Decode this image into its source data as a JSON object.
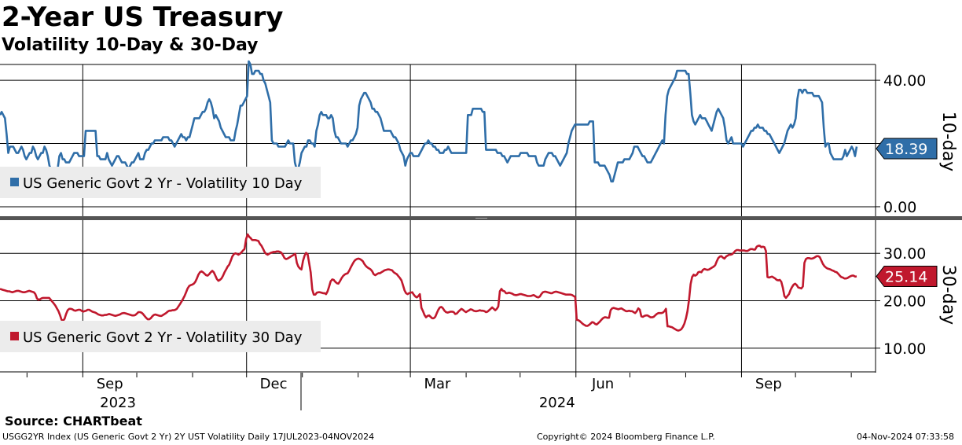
{
  "header": {
    "title": "2-Year US Treasury",
    "subtitle": "Volatility 10-Day & 30-Day"
  },
  "footer": {
    "source": "Source: CHARTbeat",
    "meta": "USGG2YR Index (US Generic Govt 2 Yr) 2Y UST Volatility  Daily 17JUL2023-04NOV2024",
    "copyright": "Copyright© 2024 Bloomberg Finance L.P.",
    "timestamp": "04-Nov-2024 07:33:58"
  },
  "chart_data": {
    "type": "line",
    "x_range": [
      "2023-07-17",
      "2024-11-04"
    ],
    "x_axis": {
      "month_ticks": [
        "Sep",
        "Dec",
        "Mar",
        "Jun",
        "Sep"
      ],
      "year_labels": [
        "2023",
        "2024"
      ]
    },
    "colors": {
      "vol10": "#2f6ea8",
      "vol30": "#c0182d"
    },
    "panels": [
      {
        "name": "10-day",
        "ylim": [
          -3,
          45
        ],
        "ticks": [
          "40.00",
          "20.00",
          "0.00"
        ],
        "tick_values": [
          40,
          20,
          0
        ],
        "series": {
          "name": "US Generic Govt 2 Yr - Volatility 10 Day",
          "last_value": "18.39",
          "values": [
            29,
            30,
            29,
            28,
            23,
            17,
            19,
            19,
            19,
            18,
            17,
            17,
            18,
            19,
            18,
            16,
            15,
            16,
            17,
            17,
            19,
            18,
            16,
            15,
            16,
            17,
            17,
            19,
            18,
            16,
            13,
            12,
            12,
            12,
            12,
            12,
            16,
            17,
            15,
            15,
            14,
            14,
            14,
            15,
            16,
            17,
            17,
            17,
            16,
            16,
            16,
            16,
            24,
            24,
            24,
            24,
            24,
            24,
            24,
            16,
            16,
            15,
            15,
            15,
            15,
            17,
            15,
            14,
            13,
            14,
            15,
            16,
            16,
            15,
            14,
            14,
            14,
            13,
            12,
            13,
            14,
            14,
            15,
            16,
            17,
            15,
            15,
            15,
            17,
            18,
            18,
            19,
            20,
            20,
            21,
            21,
            21,
            21,
            21,
            22,
            22,
            22,
            22,
            21,
            21,
            20,
            19,
            20,
            21,
            22,
            23,
            22,
            22,
            21,
            22,
            22,
            24,
            26,
            28,
            28,
            28,
            28,
            29,
            30,
            30,
            31,
            33,
            34,
            33,
            31,
            28,
            29,
            28,
            27,
            25,
            24,
            23,
            22,
            22,
            22,
            21,
            21,
            21,
            24,
            26,
            29,
            32,
            32,
            33,
            34,
            35,
            46,
            45,
            42,
            42,
            43,
            43,
            43,
            42,
            42,
            40,
            39,
            37,
            35,
            33,
            21,
            20,
            20,
            20,
            19,
            19,
            19,
            19,
            19,
            20,
            21,
            20,
            20,
            20,
            14,
            12,
            12,
            14,
            17,
            18,
            19,
            19,
            21,
            21,
            20,
            20,
            19,
            24,
            26,
            29,
            30,
            29,
            29,
            29,
            28,
            28,
            29,
            28,
            24,
            22,
            22,
            21,
            20,
            20,
            20,
            20,
            19,
            20,
            21,
            21,
            22,
            23,
            25,
            32,
            34,
            35,
            36,
            36,
            35,
            34,
            33,
            31,
            31,
            30,
            30,
            29,
            28,
            26,
            24,
            24,
            24,
            24,
            24,
            23,
            22,
            22,
            21,
            20,
            18,
            17,
            16,
            13,
            15,
            16,
            17,
            17,
            16,
            16,
            16,
            16,
            17,
            18,
            19,
            20,
            20,
            21,
            20,
            20,
            19,
            19,
            18,
            18,
            17,
            17,
            17,
            18,
            18,
            19,
            18,
            17,
            17,
            17,
            17,
            17,
            17,
            17,
            17,
            17,
            17,
            29,
            29,
            29,
            31,
            31,
            31,
            31,
            31,
            31,
            30,
            30,
            18,
            18,
            18,
            18,
            18,
            18,
            18,
            17,
            17,
            17,
            16,
            16,
            15,
            14,
            15,
            16,
            16,
            16,
            16,
            16,
            16,
            17,
            17,
            17,
            17,
            17,
            16,
            16,
            16,
            16,
            16,
            14,
            13,
            13,
            13,
            13,
            15,
            16,
            17,
            17,
            17,
            16,
            16,
            15,
            14,
            13,
            14,
            15,
            16,
            17,
            20,
            22,
            24,
            25,
            26,
            26,
            26,
            26,
            26,
            26,
            26,
            26,
            26,
            27,
            27,
            27,
            14,
            14,
            14,
            13,
            13,
            13,
            13,
            12,
            11,
            10,
            8,
            8,
            10,
            12,
            14,
            14,
            14,
            14,
            15,
            15,
            15,
            15,
            16,
            17,
            19,
            19,
            19,
            18,
            17,
            16,
            16,
            15,
            14,
            14,
            14,
            15,
            16,
            17,
            18,
            19,
            20,
            21,
            20,
            29,
            35,
            37,
            38,
            39,
            40,
            41,
            43,
            43,
            43,
            43,
            43,
            43,
            42,
            42,
            36,
            29,
            27,
            26,
            27,
            28,
            29,
            28,
            28,
            28,
            27,
            26,
            25,
            24,
            26,
            28,
            30,
            31,
            30,
            29,
            28,
            25,
            21,
            20,
            21,
            22,
            20,
            20,
            20,
            20,
            20,
            20,
            19,
            20,
            21,
            22,
            23,
            24,
            24,
            25,
            25,
            26,
            25,
            25,
            25,
            24,
            24,
            23,
            23,
            22,
            21,
            20,
            19,
            18,
            17,
            18,
            19,
            20,
            22,
            24,
            25,
            26,
            25,
            26,
            28,
            34,
            37,
            37,
            36,
            37,
            37,
            36,
            36,
            36,
            36,
            35,
            35,
            35,
            35,
            34,
            33,
            25,
            19,
            20,
            20,
            17,
            16,
            15,
            15,
            15,
            15,
            15,
            15,
            16,
            18,
            16,
            17,
            18,
            19,
            18,
            16,
            19
          ]
        }
      },
      {
        "name": "30-day",
        "ylim": [
          5,
          37
        ],
        "ticks": [
          "30.00",
          "20.00",
          "10.00"
        ],
        "tick_values": [
          30,
          20,
          10
        ],
        "series": {
          "name": "US Generic Govt 2 Yr - Volatility 30 Day",
          "last_value": "25.14",
          "values": [
            22.5,
            22.4,
            22.3,
            22.2,
            22.1,
            22.0,
            22.0,
            21.9,
            21.8,
            21.9,
            22.0,
            22.1,
            22.1,
            22.0,
            21.9,
            21.8,
            21.8,
            21.9,
            22.0,
            22.1,
            22.0,
            21.9,
            21.8,
            21.4,
            20.5,
            20.2,
            20.3,
            20.5,
            20.6,
            20.6,
            20.6,
            20.6,
            20.6,
            20.2,
            19.8,
            19.4,
            19.0,
            18.4,
            17.8,
            17.0,
            16.0,
            15.8,
            16.2,
            17.2,
            18.0,
            18.3,
            18.3,
            18.2,
            18.0,
            17.9,
            18.0,
            18.1,
            18.1,
            17.9,
            17.7,
            17.8,
            17.9,
            18.1,
            18.1,
            17.9,
            17.7,
            17.6,
            17.5,
            17.3,
            17.1,
            17.0,
            16.9,
            16.9,
            17.0,
            17.0,
            17.1,
            17.2,
            17.1,
            17.0,
            16.9,
            16.8,
            16.9,
            17.0,
            17.1,
            17.3,
            17.4,
            17.4,
            17.3,
            17.2,
            17.1,
            17.0,
            16.9,
            16.9,
            17.0,
            17.3,
            17.6,
            17.6,
            17.5,
            17.2,
            16.8,
            16.4,
            16.1,
            16.1,
            16.3,
            16.7,
            17.0,
            17.1,
            17.0,
            16.9,
            16.8,
            16.8,
            17.0,
            17.2,
            17.4,
            17.7,
            17.9,
            17.9,
            18.0,
            18.0,
            18.1,
            18.3,
            18.8,
            19.3,
            19.8,
            20.4,
            21.0,
            21.8,
            22.6,
            23.1,
            23.3,
            23.4,
            23.6,
            24.0,
            24.7,
            25.5,
            26.0,
            26.2,
            26.0,
            25.7,
            25.4,
            25.3,
            25.6,
            26.0,
            26.3,
            26.0,
            25.3,
            24.6,
            24.2,
            24.4,
            24.7,
            25.3,
            26.0,
            26.6,
            27.2,
            27.6,
            28.4,
            29.3,
            29.8,
            30.0,
            29.9,
            29.7,
            29.9,
            30.2,
            30.6,
            30.9,
            33.0,
            34.0,
            33.5,
            33.2,
            32.8,
            32.8,
            32.8,
            32.7,
            32.6,
            32.0,
            31.6,
            31.0,
            30.3,
            29.9,
            29.7,
            29.9,
            30.1,
            30.2,
            30.3,
            30.3,
            30.4,
            30.4,
            30.3,
            30.1,
            29.6,
            29.0,
            28.8,
            28.9,
            29.1,
            29.3,
            29.5,
            29.7,
            29.9,
            28.0,
            27.2,
            26.8,
            26.6,
            28.4,
            29.5,
            30.1,
            29.8,
            28.0,
            26.0,
            22.4,
            21.3,
            21.3,
            21.7,
            21.8,
            21.8,
            21.7,
            21.6,
            21.6,
            21.4,
            22.0,
            23.0,
            24.1,
            24.5,
            24.4,
            24.0,
            23.7,
            23.6,
            24.1,
            24.7,
            25.2,
            25.5,
            25.7,
            25.8,
            26.3,
            27.0,
            27.6,
            28.2,
            28.6,
            28.8,
            28.9,
            28.8,
            28.6,
            28.3,
            27.7,
            27.3,
            27.0,
            26.8,
            26.6,
            26.2,
            25.6,
            25.4,
            25.6,
            25.8,
            25.8,
            26.0,
            26.2,
            26.4,
            26.5,
            26.6,
            26.6,
            26.5,
            26.4,
            26.0,
            25.8,
            25.6,
            25.2,
            24.8,
            24.3,
            23.3,
            22.2,
            21.6,
            21.4,
            21.6,
            21.7,
            21.8,
            21.3,
            20.9,
            20.7,
            21.0,
            21.4,
            18.5,
            17.8,
            17.0,
            16.5,
            16.8,
            16.9,
            16.6,
            16.3,
            16.3,
            16.6,
            17.4,
            18.1,
            18.6,
            18.7,
            18.4,
            17.9,
            17.6,
            17.5,
            17.6,
            17.7,
            17.7,
            17.6,
            17.2,
            17.3,
            17.7,
            18.0,
            18.3,
            18.1,
            17.8,
            17.6,
            17.8,
            18.0,
            18.2,
            18.1,
            17.9,
            17.8,
            17.8,
            17.9,
            18.0,
            17.9,
            17.9,
            17.8,
            17.6,
            17.7,
            18.0,
            18.3,
            18.6,
            18.3,
            18.0,
            18.3,
            18.8,
            22.0,
            22.5,
            22.1,
            22.0,
            21.6,
            21.6,
            21.7,
            21.6,
            21.5,
            21.3,
            21.2,
            21.2,
            21.3,
            21.4,
            21.4,
            21.3,
            21.2,
            21.1,
            21.0,
            21.0,
            21.0,
            21.1,
            21.2,
            21.0,
            20.8,
            20.7,
            20.9,
            21.4,
            21.8,
            21.9,
            21.9,
            21.8,
            21.7,
            21.6,
            21.6,
            21.8,
            21.9,
            21.9,
            21.8,
            21.7,
            21.6,
            21.5,
            21.4,
            21.3,
            21.3,
            21.3,
            21.3,
            21.2,
            21.0,
            20.8,
            16.0,
            15.9,
            15.7,
            15.4,
            15.1,
            14.9,
            14.7,
            14.7,
            14.9,
            15.2,
            15.5,
            15.4,
            15.1,
            15.0,
            15.3,
            15.6,
            16.0,
            16.3,
            16.5,
            16.5,
            16.4,
            16.4,
            18.0,
            18.4,
            18.5,
            18.4,
            18.3,
            18.2,
            18.3,
            18.4,
            18.2,
            18.0,
            17.8,
            17.8,
            17.9,
            17.8,
            17.8,
            17.6,
            17.4,
            17.8,
            18.4,
            18.1,
            16.7,
            16.6,
            16.8,
            16.9,
            16.9,
            16.7,
            16.5,
            16.5,
            16.6,
            16.9,
            17.2,
            17.4,
            17.4,
            17.4,
            17.5,
            17.8,
            18.3,
            14.6,
            14.6,
            14.5,
            14.4,
            14.2,
            14.0,
            13.8,
            13.7,
            13.8,
            14.0,
            14.5,
            15.2,
            16.3,
            17.8,
            20.2,
            23.5,
            25.0,
            25.5,
            25.3,
            25.5,
            26.0,
            26.1,
            26.0,
            26.5,
            26.7,
            26.6,
            26.5,
            26.6,
            26.8,
            27.0,
            27.2,
            27.5,
            28.3,
            29.0,
            29.3,
            29.4,
            29.1,
            28.9,
            29.3,
            29.5,
            29.7,
            29.7,
            29.8,
            30.1,
            30.5,
            30.7,
            30.7,
            30.6,
            30.6,
            30.6,
            30.6,
            30.5,
            30.5,
            30.7,
            30.9,
            30.9,
            30.8,
            30.8,
            31.4,
            31.6,
            31.6,
            31.3,
            31.4,
            31.3,
            30.5,
            25.0,
            24.9,
            25.0,
            25.1,
            24.9,
            24.7,
            24.4,
            24.3,
            24.4,
            24.0,
            22.7,
            21.0,
            20.6,
            21.0,
            21.4,
            22.3,
            22.9,
            23.4,
            23.6,
            23.3,
            22.8,
            22.7,
            22.6,
            23.0,
            28.0,
            28.8,
            29.0,
            29.0,
            28.9,
            28.9,
            29.0,
            29.2,
            29.4,
            29.4,
            29.2,
            28.5,
            27.8,
            27.3,
            27.0,
            26.8,
            26.7,
            26.6,
            26.4,
            26.3,
            26.1,
            26.0,
            25.7,
            25.3,
            25.0,
            24.9,
            24.7,
            24.7,
            24.8,
            25.0,
            25.2,
            25.3,
            25.3,
            25.1,
            25.14
          ]
        }
      }
    ]
  }
}
